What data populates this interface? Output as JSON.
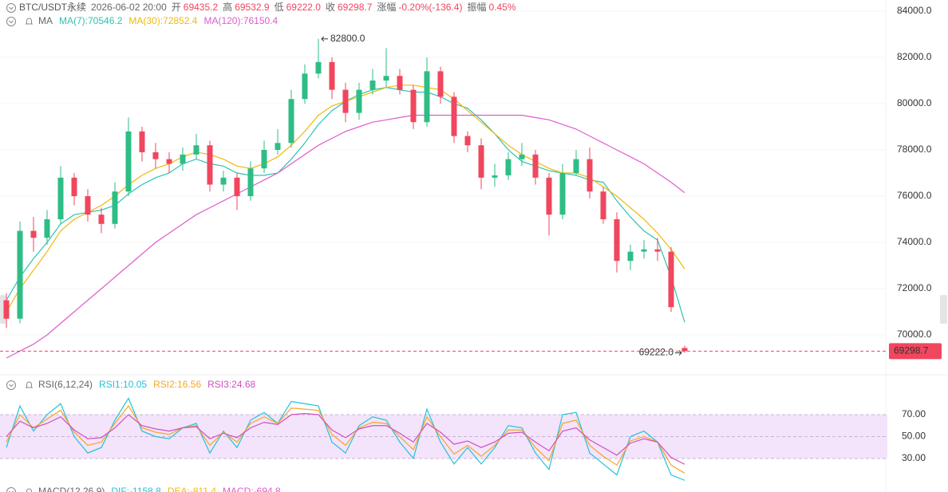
{
  "chart_data": [
    {
      "type": "candlestick",
      "title": "BTC/USDT永续",
      "info": [
        "2026-06-02 20:00",
        {
          "label": "开",
          "value": "69435.2"
        },
        {
          "label": "高",
          "value": "69532.9"
        },
        {
          "label": "低",
          "value": "69222.0"
        },
        {
          "label": "收",
          "value": "69298.7"
        },
        {
          "label": "涨幅",
          "value": "-0.20%(-136.4)"
        },
        {
          "label": "振幅",
          "value": "0.45%"
        }
      ],
      "legend_title": "MA",
      "up_color": "#2ebd85",
      "down_color": "#f0465e",
      "open": [
        71500,
        70700,
        74500,
        74200,
        75000,
        76800,
        76000,
        75200,
        74800,
        76200,
        78800,
        77900,
        77600,
        77400,
        77800,
        78200,
        76500,
        76800,
        76000,
        77200,
        78000,
        78300,
        80200,
        81300,
        81800,
        80600,
        79600,
        80600,
        81000,
        81200,
        80600,
        79200,
        81400,
        80300,
        78600,
        78200,
        76800,
        76900,
        77600,
        77800,
        76800,
        75200,
        77000,
        77600,
        76200,
        75000,
        73200,
        73600,
        73700,
        73600,
        69435.2
      ],
      "high": [
        71800,
        74900,
        75100,
        75400,
        77300,
        77000,
        76300,
        75500,
        76600,
        79400,
        79000,
        78300,
        77900,
        78100,
        78700,
        78400,
        77100,
        77000,
        77500,
        78400,
        78900,
        80600,
        81700,
        82800,
        82000,
        80900,
        80900,
        81500,
        82400,
        81500,
        80800,
        82000,
        81600,
        80500,
        78800,
        78500,
        77400,
        77900,
        78300,
        78000,
        77000,
        77400,
        78000,
        78100,
        76400,
        75300,
        73900,
        74100,
        74200,
        73800,
        69532.9
      ],
      "low": [
        70300,
        70500,
        73600,
        73900,
        74800,
        75600,
        74900,
        74400,
        74600,
        76000,
        77500,
        77200,
        77000,
        77100,
        77600,
        76200,
        76200,
        75400,
        75800,
        77000,
        77800,
        78100,
        80000,
        81100,
        80200,
        79200,
        79300,
        80400,
        80700,
        80400,
        78900,
        79000,
        80000,
        78300,
        77900,
        76300,
        76400,
        76700,
        77300,
        76500,
        74300,
        75000,
        76900,
        75900,
        74800,
        72700,
        72800,
        73300,
        73200,
        71000,
        69222.0
      ],
      "close": [
        70700,
        74500,
        74200,
        75000,
        76800,
        76000,
        75200,
        74800,
        76200,
        78800,
        77900,
        77600,
        77400,
        77800,
        78200,
        76500,
        76800,
        76000,
        77200,
        78000,
        78300,
        80200,
        81300,
        81800,
        80600,
        79600,
        80600,
        81000,
        81200,
        80600,
        79200,
        81400,
        80300,
        78600,
        78200,
        76800,
        76900,
        77600,
        77800,
        76800,
        75200,
        77000,
        77600,
        76200,
        75000,
        73200,
        73600,
        73700,
        73600,
        71200,
        69298.7
      ],
      "series": [
        {
          "name": "MA(7):70546.2",
          "color": "#2cc4b0",
          "values": [
            71500,
            72500,
            73300,
            74000,
            74800,
            75200,
            75300,
            75400,
            75600,
            76100,
            76500,
            76800,
            77000,
            77400,
            77600,
            77400,
            77300,
            77000,
            76900,
            76900,
            77000,
            77600,
            78300,
            79100,
            79700,
            80100,
            80400,
            80600,
            80700,
            80600,
            80500,
            80500,
            80300,
            80000,
            79800,
            79300,
            78700,
            78000,
            77500,
            77300,
            77100,
            77000,
            76900,
            76700,
            76600,
            75800,
            75100,
            74500,
            74100,
            72500,
            70546.2
          ]
        },
        {
          "name": "MA(30):72852.4",
          "color": "#f0b90b",
          "values": [
            71000,
            72000,
            72800,
            73600,
            74500,
            75000,
            75300,
            75600,
            76000,
            76500,
            76900,
            77200,
            77400,
            77700,
            77900,
            77800,
            77600,
            77300,
            77200,
            77400,
            77700,
            78200,
            78800,
            79500,
            79900,
            80100,
            80300,
            80500,
            80700,
            80800,
            80800,
            80700,
            80600,
            80200,
            79700,
            79200,
            78700,
            78200,
            77800,
            77500,
            77200,
            77000,
            77000,
            76800,
            76400,
            76000,
            75500,
            75000,
            74400,
            73700,
            72852.4
          ]
        },
        {
          "name": "MA(120):76150.4",
          "color": "#de5ccd",
          "values": [
            69000,
            69300,
            69600,
            70000,
            70500,
            71000,
            71500,
            72000,
            72500,
            73000,
            73500,
            74000,
            74400,
            74800,
            75200,
            75500,
            75800,
            76100,
            76400,
            76700,
            77000,
            77400,
            77800,
            78200,
            78500,
            78800,
            79000,
            79200,
            79300,
            79400,
            79500,
            79500,
            79500,
            79500,
            79500,
            79500,
            79500,
            79500,
            79500,
            79400,
            79300,
            79100,
            78900,
            78600,
            78300,
            78000,
            77700,
            77400,
            77000,
            76600,
            76150.4
          ]
        }
      ],
      "annotations": [
        {
          "text": "82800.0",
          "index": 23,
          "value": 82800,
          "side": "right"
        },
        {
          "text": "69222.0",
          "index": 50,
          "value": 69222.0,
          "side": "left"
        }
      ],
      "last_price": {
        "value": 69298.7,
        "label": "69298.7"
      },
      "ylim": [
        68448,
        84483
      ],
      "yticks": [
        {
          "value": 70000,
          "label": "70000.0"
        },
        {
          "value": 72000,
          "label": "72000.0"
        },
        {
          "value": 74000,
          "label": "74000.0"
        },
        {
          "value": 76000,
          "label": "76000.0"
        },
        {
          "value": 78000,
          "label": "78000.0"
        },
        {
          "value": 80000,
          "label": "80000.0"
        },
        {
          "value": 82000,
          "label": "82000.0"
        },
        {
          "value": 84000,
          "label": "84000.0"
        }
      ],
      "grid": true
    },
    {
      "type": "line",
      "title": "RSI(6,12,24)",
      "series": [
        {
          "name": "RSI1:10.05",
          "color": "#22c3d6",
          "values": [
            40,
            78,
            55,
            70,
            80,
            50,
            35,
            40,
            65,
            85,
            55,
            50,
            48,
            58,
            62,
            35,
            55,
            40,
            65,
            72,
            62,
            82,
            80,
            78,
            45,
            35,
            60,
            68,
            65,
            45,
            30,
            75,
            45,
            25,
            40,
            25,
            40,
            60,
            58,
            35,
            20,
            70,
            72,
            35,
            25,
            15,
            50,
            55,
            45,
            15,
            10.05
          ]
        },
        {
          "name": "RSI2:16.56",
          "color": "#f5a623",
          "values": [
            45,
            70,
            58,
            66,
            74,
            54,
            42,
            45,
            62,
            78,
            58,
            54,
            52,
            58,
            60,
            42,
            54,
            45,
            62,
            68,
            62,
            76,
            75,
            74,
            52,
            42,
            58,
            63,
            62,
            50,
            38,
            68,
            50,
            34,
            42,
            32,
            42,
            56,
            56,
            40,
            28,
            62,
            65,
            42,
            32,
            24,
            46,
            50,
            45,
            24,
            16.56
          ]
        },
        {
          "name": "RSI3:24.68",
          "color": "#d04fc0",
          "values": [
            50,
            64,
            58,
            62,
            68,
            56,
            48,
            49,
            58,
            70,
            60,
            57,
            55,
            58,
            59,
            48,
            53,
            49,
            58,
            63,
            61,
            70,
            71,
            70,
            56,
            49,
            57,
            60,
            60,
            53,
            45,
            62,
            54,
            43,
            46,
            40,
            45,
            53,
            54,
            45,
            37,
            55,
            58,
            47,
            40,
            33,
            44,
            48,
            45,
            31,
            24.68
          ]
        }
      ],
      "band": [
        30,
        70
      ],
      "band_color": "#f3e3fb",
      "ylim": [
        4.5,
        88.2
      ],
      "yticks": [
        {
          "value": 30,
          "label": "30.00"
        },
        {
          "value": 50,
          "label": "50.00"
        },
        {
          "value": 70,
          "label": "70.00"
        }
      ]
    },
    {
      "type": "legend",
      "title": "MACD(12,26,9)",
      "series": [
        {
          "name": "DIF:-1158.8",
          "color": "#22c3d6"
        },
        {
          "name": "DEA:-811.4",
          "color": "#f0b90b"
        },
        {
          "name": "MACD:-694.8",
          "color": "#de5ccd"
        }
      ]
    }
  ]
}
